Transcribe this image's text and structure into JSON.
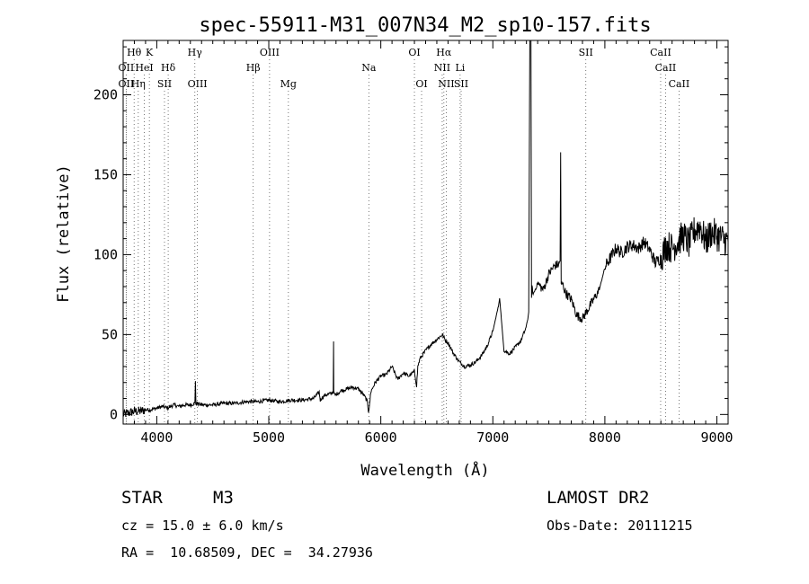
{
  "chart_data": {
    "type": "line",
    "title": "spec-55911-M31_007N34_M2_sp10-157.fits",
    "xlabel": "Wavelength (Å)",
    "ylabel": "Flux (relative)",
    "xlim": [
      3700,
      9100
    ],
    "ylim": [
      -6,
      234
    ],
    "x_ticks": [
      4000,
      5000,
      6000,
      7000,
      8000,
      9000
    ],
    "y_ticks": [
      0,
      50,
      100,
      150,
      200
    ],
    "x_tick_labels": [
      "4000",
      "5000",
      "6000",
      "7000",
      "8000",
      "9000"
    ],
    "y_tick_labels": [
      "0",
      "50",
      "100",
      "150",
      "200"
    ],
    "grid": false,
    "series": [
      {
        "x": [
          3700,
          3750,
          3800,
          3850,
          3900,
          3950,
          4000,
          4050,
          4100,
          4150,
          4200,
          4250,
          4300,
          4340,
          4345,
          4350,
          4355,
          4360,
          4400,
          4500,
          4600,
          4700,
          4800,
          4900,
          5000,
          5100,
          5200,
          5300,
          5400,
          5450,
          5460,
          5470,
          5500,
          5550,
          5575,
          5578,
          5580,
          5590,
          5650,
          5700,
          5750,
          5800,
          5850,
          5880,
          5890,
          5900,
          5910,
          5950,
          6000,
          6050,
          6100,
          6150,
          6200,
          6250,
          6300,
          6320,
          6330,
          6350,
          6400,
          6450,
          6500,
          6550,
          6580,
          6600,
          6650,
          6700,
          6750,
          6800,
          6850,
          6900,
          6950,
          7000,
          7050,
          7060,
          7100,
          7150,
          7200,
          7250,
          7300,
          7320,
          7330,
          7340,
          7345,
          7350,
          7360,
          7400,
          7450,
          7500,
          7550,
          7590,
          7600,
          7605,
          7610,
          7620,
          7650,
          7700,
          7750,
          7800,
          7850,
          7900,
          7950,
          8000,
          8050,
          8100,
          8150,
          8200,
          8250,
          8300,
          8350,
          8400,
          8450,
          8500,
          8550,
          8600,
          8650,
          8700,
          8750,
          8800,
          8850,
          8900,
          8950,
          9000,
          9050,
          9100
        ],
        "y": [
          0,
          1,
          2,
          2,
          3,
          3,
          4,
          5,
          4,
          6,
          5,
          6,
          6,
          7,
          21,
          7,
          6,
          7,
          6,
          6,
          7,
          7,
          8,
          8,
          9,
          8,
          9,
          9,
          10,
          14,
          9,
          10,
          12,
          13,
          14,
          46,
          14,
          12,
          15,
          16,
          17,
          16,
          12,
          8,
          2,
          6,
          14,
          20,
          24,
          25,
          30,
          22,
          26,
          24,
          27,
          18,
          30,
          35,
          40,
          44,
          47,
          50,
          46,
          45,
          38,
          33,
          30,
          31,
          33,
          37,
          43,
          52,
          68,
          73,
          40,
          38,
          42,
          46,
          55,
          64,
          234,
          234,
          74,
          80,
          75,
          82,
          78,
          88,
          93,
          94,
          96,
          164,
          80,
          82,
          76,
          72,
          62,
          60,
          66,
          72,
          78,
          92,
          98,
          104,
          101,
          105,
          106,
          104,
          108,
          103,
          95,
          98,
          106,
          104,
          108,
          112,
          107,
          115,
          118,
          108,
          114,
          112,
          110,
          108
        ]
      }
    ],
    "line_ids": [
      {
        "label": "Hθ",
        "x": 3798,
        "row": 0
      },
      {
        "label": "K",
        "x": 3934,
        "row": 0
      },
      {
        "label": "OII",
        "x": 3727,
        "row": 1
      },
      {
        "label": "HeI",
        "x": 3889,
        "row": 1
      },
      {
        "label": "Hδ",
        "x": 4102,
        "row": 1
      },
      {
        "label": "OII",
        "x": 3727,
        "row": 2
      },
      {
        "label": "Hη",
        "x": 3835,
        "row": 2
      },
      {
        "label": "SII",
        "x": 4069,
        "row": 2
      },
      {
        "label": "Hγ",
        "x": 4340,
        "row": 0
      },
      {
        "label": "OIII",
        "x": 4363,
        "row": 2
      },
      {
        "label": "OIII",
        "x": 5007,
        "row": 0
      },
      {
        "label": "Hβ",
        "x": 4861,
        "row": 1
      },
      {
        "label": "Mg",
        "x": 5175,
        "row": 2
      },
      {
        "label": "Na",
        "x": 5893,
        "row": 1
      },
      {
        "label": "OI",
        "x": 6300,
        "row": 0
      },
      {
        "label": "OI",
        "x": 6364,
        "row": 2
      },
      {
        "label": "Hα",
        "x": 6563,
        "row": 0
      },
      {
        "label": "NII",
        "x": 6548,
        "row": 1
      },
      {
        "label": "Li",
        "x": 6708,
        "row": 1
      },
      {
        "label": "NII",
        "x": 6584,
        "row": 2
      },
      {
        "label": "SII",
        "x": 6717,
        "row": 2
      },
      {
        "label": "SII",
        "x": 7830,
        "row": 0
      },
      {
        "label": "CaII",
        "x": 8498,
        "row": 0
      },
      {
        "label": "CaII",
        "x": 8542,
        "row": 1
      },
      {
        "label": "CaII",
        "x": 8662,
        "row": 2
      }
    ]
  },
  "info": {
    "class_label": "STAR",
    "subclass": "M3",
    "survey": "LAMOST DR2",
    "cz": "cz = 15.0 ± 6.0 km/s",
    "obs_date": "Obs-Date: 20111215",
    "coords": "RA =  10.68509, DEC =  34.27936"
  }
}
